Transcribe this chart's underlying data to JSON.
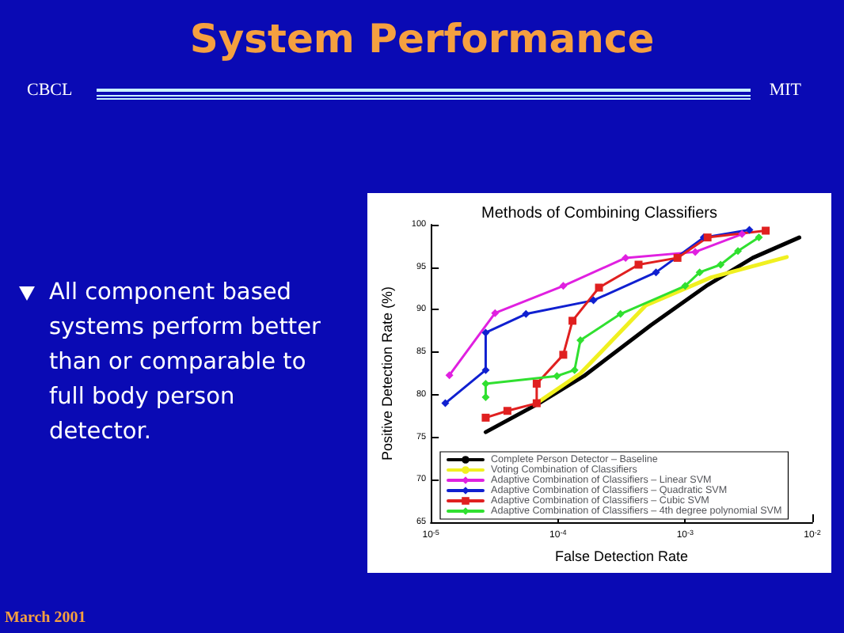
{
  "chart_data": {
    "type": "line",
    "title": "System Performance",
    "subtitle": "Methods of Combining Classifiers",
    "xlabel": "False Detection Rate",
    "ylabel": "Positive Detection Rate (%)",
    "annotations": [
      "CBCL",
      "MIT",
      "All component based systems perform better than or comparable to full body person detector.",
      "March 2001"
    ],
    "log": "x",
    "xlim": [
      1e-05,
      0.01
    ],
    "xticks": [
      {
        "value": 1e-05,
        "label": "10$^{-5}$"
      },
      {
        "value": 0.0001,
        "label": "10$^{-4}$"
      },
      {
        "value": 0.001,
        "label": "10$^{-3}$"
      },
      {
        "value": 0.01,
        "label": "10$^{-2}$"
      }
    ],
    "ylim": [
      65,
      100
    ],
    "yticks": [
      65,
      70,
      75,
      80,
      85,
      90,
      95,
      100
    ],
    "grid": false,
    "legend": "bottom left",
    "marker": "diamond",
    "line_style": "solid",
    "series": [
      {
        "name": "Complete Person Detector – Baseline",
        "color": "#000000",
        "marker": "none",
        "x": [
          2.7e-05,
          7.1e-05,
          0.00016,
          0.00054,
          0.0015,
          0.0034,
          0.0079
        ],
        "values": [
          75.6,
          79.0,
          82.2,
          88.2,
          92.9,
          96.1,
          98.5
        ]
      },
      {
        "name": "Voting Combination of Classifiers",
        "color": "#f0f020",
        "marker": "none",
        "x": [
          6.8e-05,
          0.00015,
          0.00049,
          0.0016,
          0.0063
        ],
        "values": [
          79.0,
          82.5,
          90.5,
          93.8,
          96.2
        ]
      },
      {
        "name": "Adaptive Combination of Classifiers – Linear SVM",
        "color": "#e020e0",
        "x": [
          1.4e-05,
          3.2e-05,
          0.00011,
          0.00034,
          0.0012,
          0.0028
        ],
        "values": [
          82.3,
          89.6,
          92.8,
          96.1,
          96.8,
          98.9
        ]
      },
      {
        "name": "Adaptive Combination of Classifiers – Quadratic SVM",
        "color": "#1020d0",
        "x": [
          1.3e-05,
          2.7e-05,
          2.7e-05,
          5.6e-05,
          0.00019,
          0.00059,
          0.0014,
          0.0032
        ],
        "values": [
          79.0,
          82.9,
          87.3,
          89.5,
          91.1,
          94.4,
          98.5,
          99.4
        ]
      },
      {
        "name": "Adaptive Combination of Classifiers – Cubic SVM",
        "color": "#e02020",
        "marker": "square",
        "x": [
          2.7e-05,
          4e-05,
          6.8e-05,
          6.8e-05,
          0.00011,
          0.00013,
          0.00021,
          0.00043,
          0.00087,
          0.0015,
          0.0043
        ],
        "values": [
          77.3,
          78.1,
          79.0,
          81.3,
          84.7,
          88.7,
          92.6,
          95.3,
          96.1,
          98.5,
          99.3
        ]
      },
      {
        "name": "Adaptive Combination of Classifiers – 4th degree polynomial SVM",
        "color": "#30e030",
        "x": [
          2.7e-05,
          2.7e-05,
          9.8e-05,
          0.000135,
          0.00015,
          0.00031,
          0.001,
          0.0013,
          0.0019,
          0.0026,
          0.0038
        ],
        "values": [
          79.7,
          81.3,
          82.2,
          82.9,
          86.4,
          89.5,
          92.8,
          94.4,
          95.3,
          96.9,
          98.5
        ]
      }
    ]
  }
}
